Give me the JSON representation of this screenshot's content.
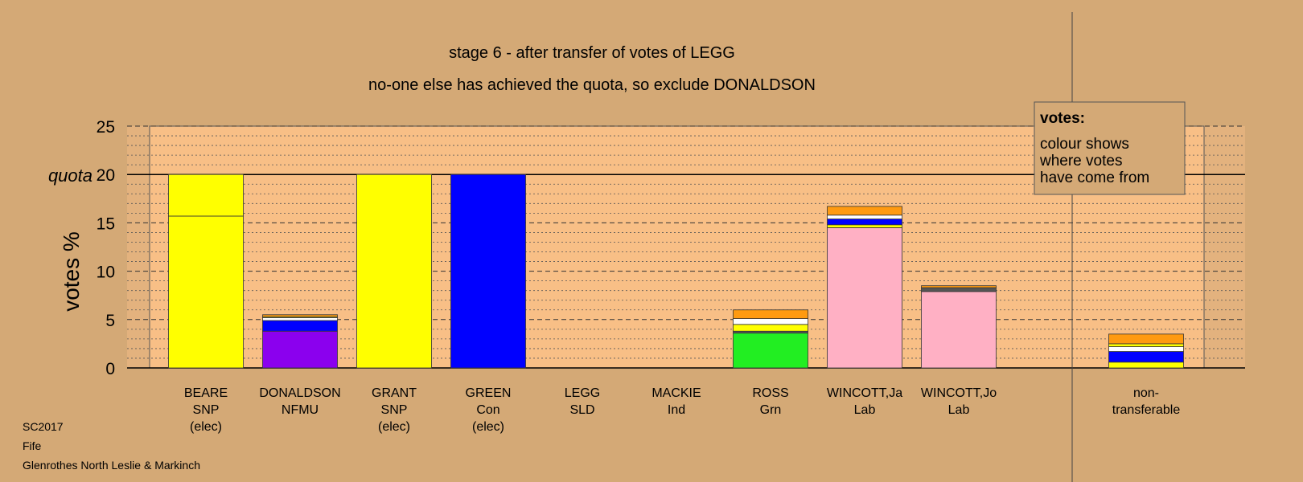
{
  "chart_data": {
    "type": "bar",
    "stacked": true,
    "title": "stage 6 - after transfer of votes of LEGG",
    "subtitle": "no-one else has achieved the quota, so exclude DONALDSON",
    "ylabel": "votes %",
    "ylim": [
      0,
      25
    ],
    "yticks": [
      "0",
      "5",
      "10",
      "15",
      "20",
      "25"
    ],
    "quota_label": "quota",
    "quota_value": 20,
    "legend": {
      "title": "votes:",
      "lines": [
        "colour shows",
        "where votes",
        "have come from"
      ],
      "position": "top-right"
    },
    "footer": [
      "SC2017",
      "Fife",
      "Glenrothes North Leslie & Markinch"
    ],
    "colors": {
      "SNP": "#ffff00",
      "NFMU": "#8b00ee",
      "Con": "#0000ff",
      "Grn": "#22ee22",
      "Lab": "#ffb0c4",
      "SLD": "#ff9a10",
      "Ind": "#ffffff",
      "other": "#555555",
      "background": "#d4a976",
      "plot_area": "#f8bf86"
    },
    "candidates": [
      {
        "name": "BEARE",
        "party": "SNP",
        "note": "(elec)",
        "segments": [
          {
            "source": "SNP",
            "value": 15.7
          },
          {
            "source": "SNP",
            "value": 4.3
          }
        ]
      },
      {
        "name": "DONALDSON",
        "party": "NFMU",
        "note": "",
        "segments": [
          {
            "source": "NFMU",
            "value": 3.8
          },
          {
            "source": "Con",
            "value": 1.1
          },
          {
            "source": "Ind",
            "value": 0.3
          },
          {
            "source": "SNP",
            "value": 0.1
          },
          {
            "source": "SLD",
            "value": 0.2
          }
        ]
      },
      {
        "name": "GRANT",
        "party": "SNP",
        "note": "(elec)",
        "segments": [
          {
            "source": "SNP",
            "value": 20.0
          }
        ]
      },
      {
        "name": "GREEN",
        "party": "Con",
        "note": "(elec)",
        "segments": [
          {
            "source": "Con",
            "value": 20.0
          }
        ]
      },
      {
        "name": "LEGG",
        "party": "SLD",
        "note": "",
        "segments": []
      },
      {
        "name": "MACKIE",
        "party": "Ind",
        "note": "",
        "segments": []
      },
      {
        "name": "ROSS",
        "party": "Grn",
        "note": "",
        "segments": [
          {
            "source": "Grn",
            "value": 3.6
          },
          {
            "source": "other",
            "value": 0.2
          },
          {
            "source": "SNP",
            "value": 0.7
          },
          {
            "source": "Ind",
            "value": 0.6
          },
          {
            "source": "SLD",
            "value": 0.9
          }
        ]
      },
      {
        "name": "WINCOTT,Ja",
        "party": "Lab",
        "note": "",
        "segments": [
          {
            "source": "Lab",
            "value": 14.5
          },
          {
            "source": "SNP",
            "value": 0.3
          },
          {
            "source": "Con",
            "value": 0.6
          },
          {
            "source": "Ind",
            "value": 0.4
          },
          {
            "source": "SLD",
            "value": 0.9
          }
        ]
      },
      {
        "name": "WINCOTT,Jo",
        "party": "Lab",
        "note": "",
        "segments": [
          {
            "source": "Lab",
            "value": 7.9
          },
          {
            "source": "other",
            "value": 0.4
          },
          {
            "source": "SLD",
            "value": 0.2
          }
        ]
      },
      {
        "name": "non-",
        "party": "transferable",
        "note": "",
        "segments": [
          {
            "source": "SNP",
            "value": 0.6
          },
          {
            "source": "Con",
            "value": 1.1
          },
          {
            "source": "Ind",
            "value": 0.5
          },
          {
            "source": "SNP",
            "value": 0.3
          },
          {
            "source": "SLD",
            "value": 1.0
          }
        ]
      }
    ]
  }
}
